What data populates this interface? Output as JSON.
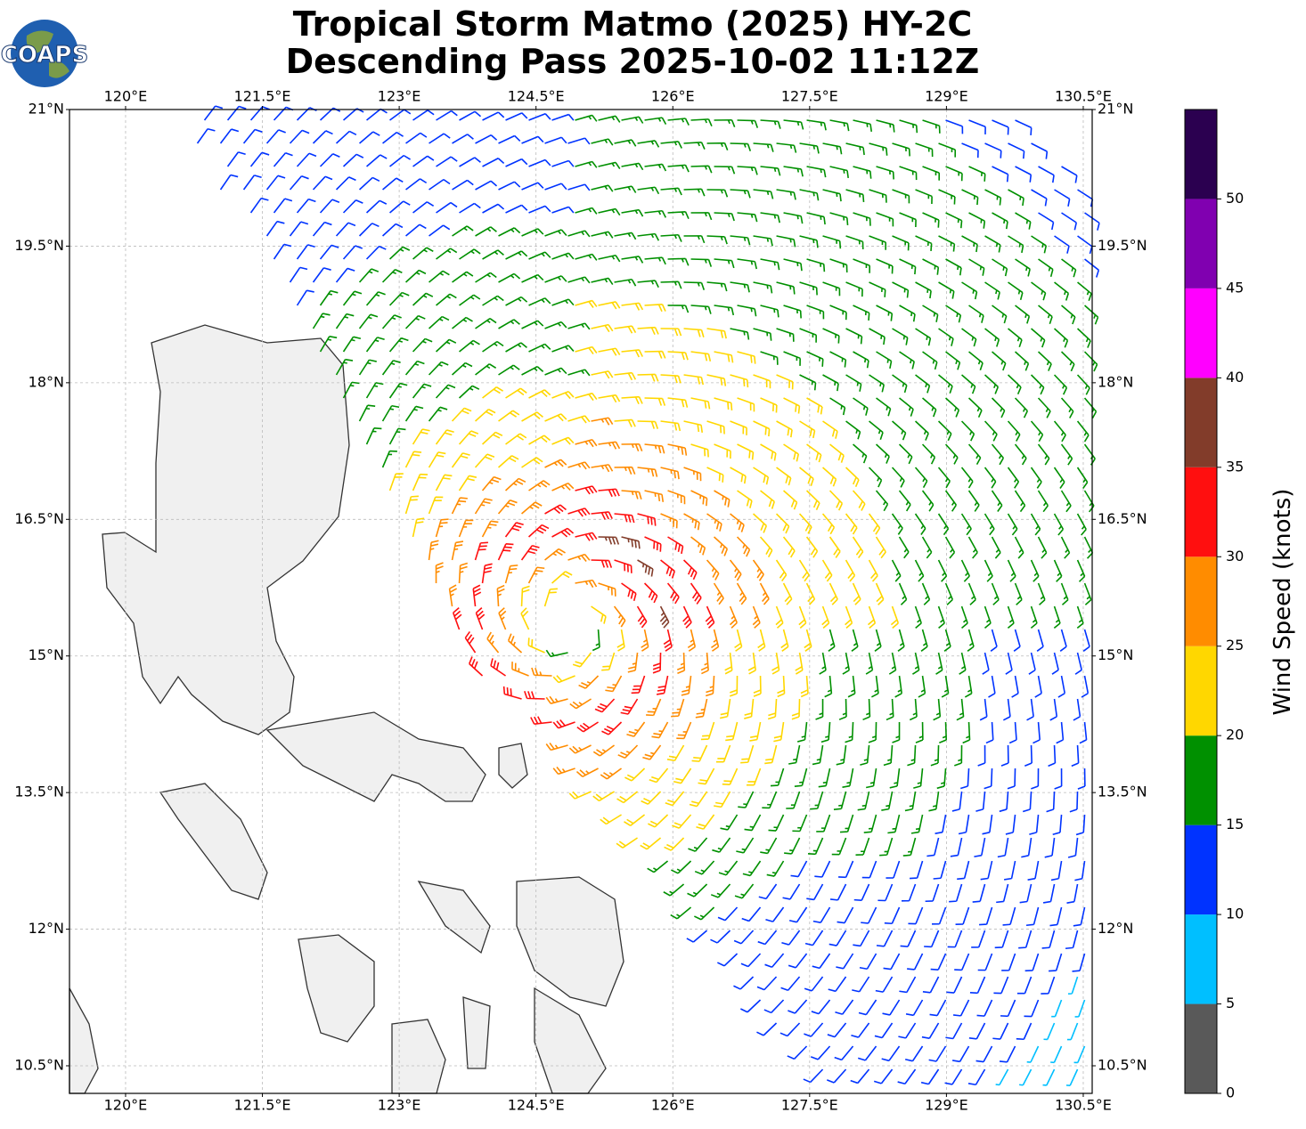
{
  "header": {
    "title": [
      "Tropical Storm Matmo (2025) HY-2C",
      "Descending Pass 2025-10-02 11:12Z"
    ],
    "logo": "COAPS"
  },
  "map": {
    "xlim": [
      119.385,
      130.598
    ],
    "ylim": [
      10.197,
      21
    ],
    "grid": true,
    "xticks": [
      {
        "value": 120,
        "label": "120°E"
      },
      {
        "value": 121.5,
        "label": "121.5°E"
      },
      {
        "value": 123,
        "label": "123°E"
      },
      {
        "value": 124.5,
        "label": "124.5°E"
      },
      {
        "value": 126,
        "label": "126°E"
      },
      {
        "value": 127.5,
        "label": "127.5°E"
      },
      {
        "value": 129,
        "label": "129°E"
      },
      {
        "value": 130.5,
        "label": "130.5°E"
      }
    ],
    "yticks": [
      {
        "value": 10.5,
        "label": "10.5°N"
      },
      {
        "value": 12,
        "label": "12°N"
      },
      {
        "value": 13.5,
        "label": "13.5°N"
      },
      {
        "value": 15,
        "label": "15°N"
      },
      {
        "value": 16.5,
        "label": "16.5°N"
      },
      {
        "value": 18,
        "label": "18°N"
      },
      {
        "value": 19.5,
        "label": "19.5°N"
      },
      {
        "value": 21,
        "label": "21°N"
      }
    ]
  },
  "colorbar": {
    "label": "Wind Speed (knots)",
    "lim": [
      0,
      55
    ],
    "ticks": [
      0,
      5,
      10,
      15,
      20,
      25,
      30,
      35,
      40,
      45,
      50
    ],
    "colors": [
      "#595959",
      "#00bfff",
      "#0033ff",
      "#009000",
      "#ffd700",
      "#ff8c00",
      "#ff0f0f",
      "#823c2a",
      "#ff00ff",
      "#8000b0",
      "#2b0050"
    ]
  }
}
